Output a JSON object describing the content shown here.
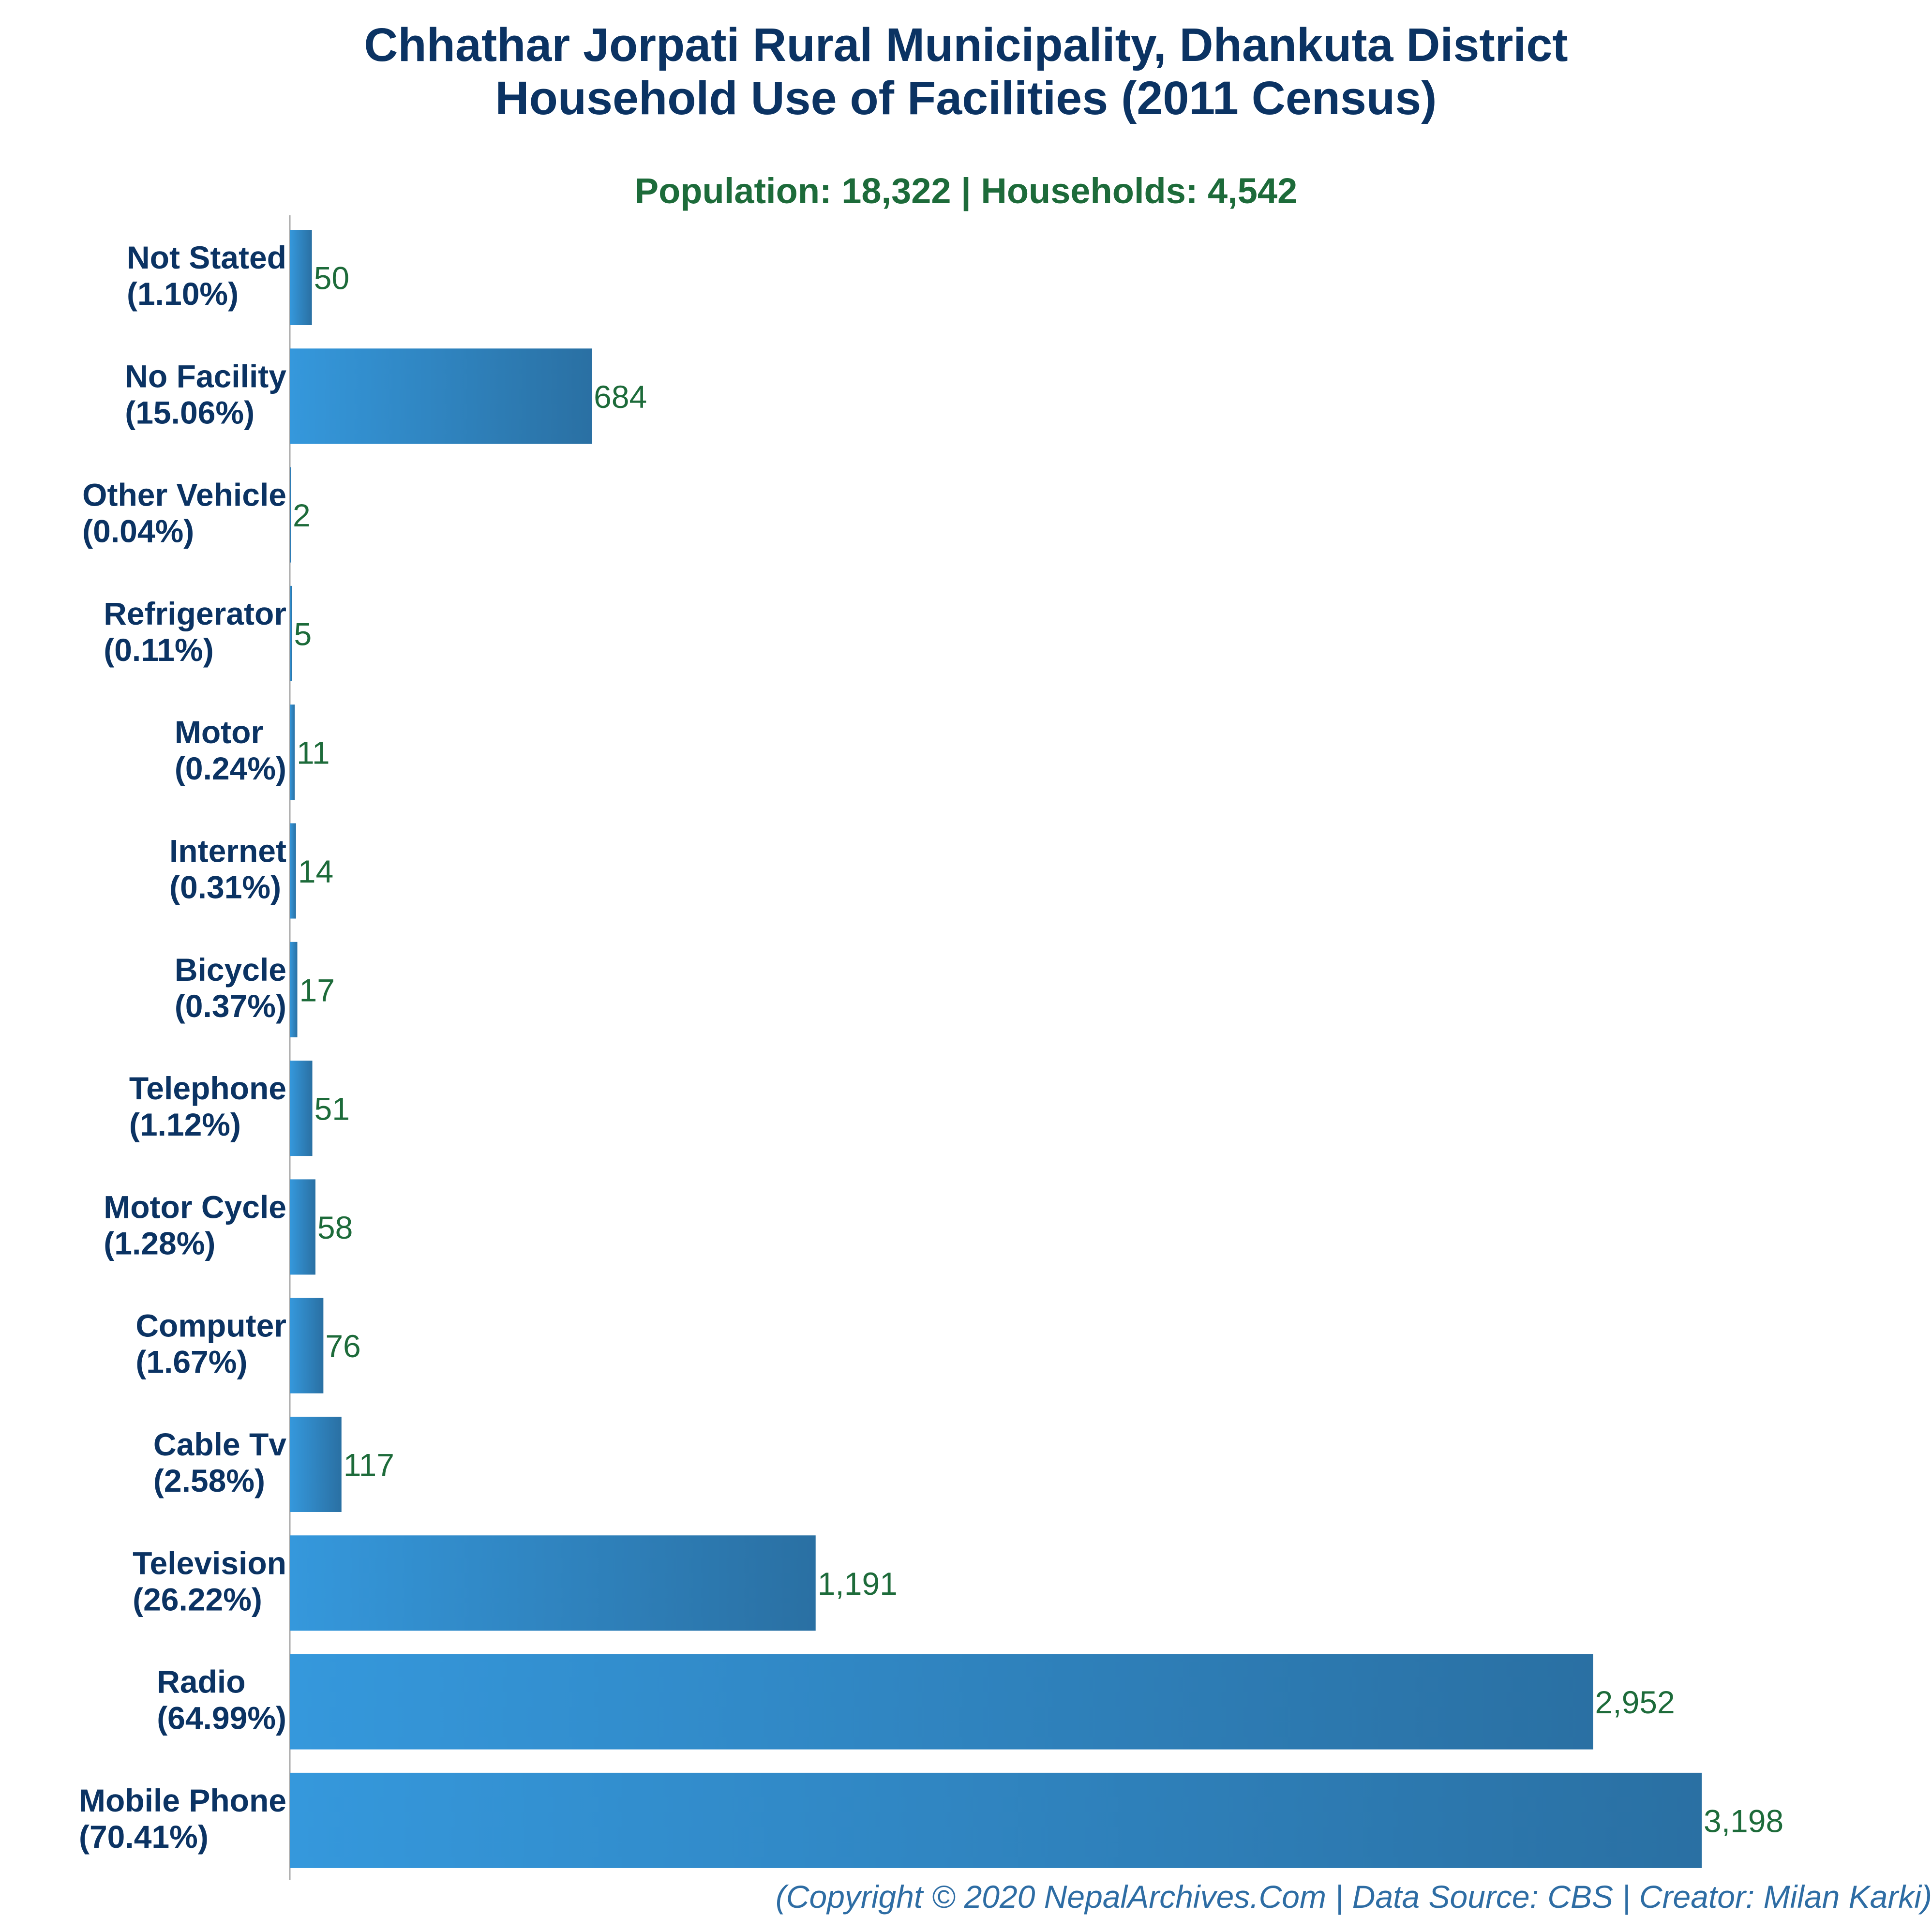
{
  "chart_data": {
    "type": "bar",
    "orientation": "horizontal",
    "title_lines": [
      "Chhathar Jorpati Rural Municipality, Dhankuta District",
      "Household Use of Facilities (2011 Census)"
    ],
    "subtitle": "Population: 18,322 | Households: 4,542",
    "categories": [
      "Not Stated",
      "No Facility",
      "Other Vehicle",
      "Refrigerator",
      "Motor",
      "Internet",
      "Bicycle",
      "Telephone",
      "Motor Cycle",
      "Computer",
      "Cable Tv",
      "Television",
      "Radio",
      "Mobile Phone"
    ],
    "percent_labels": [
      "(1.10%)",
      "(15.06%)",
      "(0.04%)",
      "(0.11%)",
      "(0.24%)",
      "(0.31%)",
      "(0.37%)",
      "(1.12%)",
      "(1.28%)",
      "(1.67%)",
      "(2.58%)",
      "(26.22%)",
      "(64.99%)",
      "(70.41%)"
    ],
    "values": [
      50,
      684,
      2,
      5,
      11,
      14,
      17,
      51,
      58,
      76,
      117,
      1191,
      2952,
      3198
    ],
    "value_labels": [
      "50",
      "684",
      "2",
      "5",
      "11",
      "14",
      "17",
      "51",
      "58",
      "76",
      "117",
      "1,191",
      "2,952",
      "3,198"
    ],
    "xlim": [
      0,
      3198
    ],
    "xlabel": "",
    "ylabel": "",
    "grid": false,
    "legend": "none",
    "bar_gradient": [
      "#3598dc",
      "#2a70a3"
    ],
    "category_color": "#0b3363",
    "value_color": "#1d6b3a"
  },
  "footer": "(Copyright © 2020 NepalArchives.Com | Data Source: CBS | Creator: Milan Karki)"
}
